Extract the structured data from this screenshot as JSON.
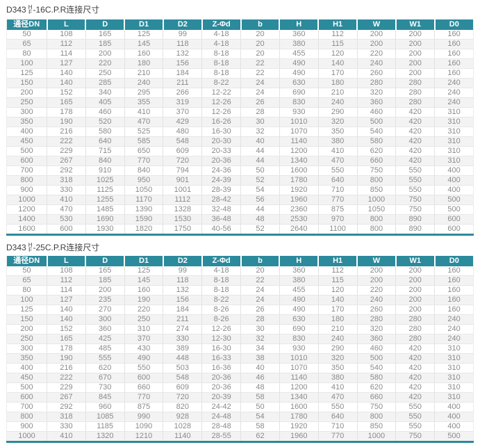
{
  "page": {
    "accent_color": "#2b8a9b",
    "row_stripe_color": "#f3f3f3",
    "text_color": "#8a8a8a"
  },
  "tables": [
    {
      "title_prefix": "D343",
      "title_frac_top": "H",
      "title_frac_bottom": "F",
      "title_suffix": "-16C.P.R连接尺寸",
      "columns": [
        "通径DN",
        "L",
        "D",
        "D1",
        "D2",
        "Z-Φd",
        "b",
        "H",
        "H1",
        "W",
        "W1",
        "D0"
      ],
      "rows": [
        [
          "50",
          "108",
          "165",
          "125",
          "99",
          "4-18",
          "20",
          "360",
          "112",
          "200",
          "200",
          "160"
        ],
        [
          "65",
          "112",
          "185",
          "145",
          "118",
          "4-18",
          "20",
          "380",
          "115",
          "200",
          "200",
          "160"
        ],
        [
          "80",
          "114",
          "200",
          "160",
          "132",
          "8-18",
          "20",
          "455",
          "120",
          "220",
          "200",
          "160"
        ],
        [
          "100",
          "127",
          "220",
          "180",
          "156",
          "8-18",
          "22",
          "490",
          "140",
          "240",
          "200",
          "160"
        ],
        [
          "125",
          "140",
          "250",
          "210",
          "184",
          "8-18",
          "22",
          "490",
          "170",
          "260",
          "200",
          "160"
        ],
        [
          "150",
          "140",
          "285",
          "240",
          "211",
          "8-22",
          "24",
          "630",
          "180",
          "280",
          "280",
          "240"
        ],
        [
          "200",
          "152",
          "340",
          "295",
          "266",
          "12-22",
          "24",
          "690",
          "210",
          "320",
          "280",
          "240"
        ],
        [
          "250",
          "165",
          "405",
          "355",
          "319",
          "12-26",
          "26",
          "830",
          "240",
          "360",
          "280",
          "240"
        ],
        [
          "300",
          "178",
          "460",
          "410",
          "370",
          "12-26",
          "28",
          "930",
          "290",
          "460",
          "420",
          "310"
        ],
        [
          "350",
          "190",
          "520",
          "470",
          "429",
          "16-26",
          "30",
          "1010",
          "320",
          "500",
          "420",
          "310"
        ],
        [
          "400",
          "216",
          "580",
          "525",
          "480",
          "16-30",
          "32",
          "1070",
          "350",
          "540",
          "420",
          "310"
        ],
        [
          "450",
          "222",
          "640",
          "585",
          "548",
          "20-30",
          "40",
          "1140",
          "380",
          "580",
          "420",
          "310"
        ],
        [
          "500",
          "229",
          "715",
          "650",
          "609",
          "20-33",
          "44",
          "1200",
          "410",
          "620",
          "420",
          "310"
        ],
        [
          "600",
          "267",
          "840",
          "770",
          "720",
          "20-36",
          "44",
          "1340",
          "470",
          "660",
          "420",
          "310"
        ],
        [
          "700",
          "292",
          "910",
          "840",
          "794",
          "24-36",
          "50",
          "1600",
          "550",
          "750",
          "550",
          "400"
        ],
        [
          "800",
          "318",
          "1025",
          "950",
          "901",
          "24-39",
          "52",
          "1780",
          "640",
          "800",
          "550",
          "400"
        ],
        [
          "900",
          "330",
          "1125",
          "1050",
          "1001",
          "28-39",
          "54",
          "1920",
          "710",
          "850",
          "550",
          "400"
        ],
        [
          "1000",
          "410",
          "1255",
          "1170",
          "1112",
          "28-42",
          "56",
          "1960",
          "770",
          "1000",
          "750",
          "500"
        ],
        [
          "1200",
          "470",
          "1485",
          "1390",
          "1328",
          "32-48",
          "44",
          "2360",
          "875",
          "1050",
          "750",
          "500"
        ],
        [
          "1400",
          "530",
          "1690",
          "1590",
          "1530",
          "36-48",
          "48",
          "2530",
          "970",
          "800",
          "890",
          "600"
        ],
        [
          "1600",
          "600",
          "1930",
          "1820",
          "1750",
          "40-56",
          "52",
          "2640",
          "1100",
          "800",
          "890",
          "600"
        ]
      ]
    },
    {
      "title_prefix": "D343",
      "title_frac_top": "H",
      "title_frac_bottom": "F",
      "title_suffix": "-25C.P.R连接尺寸",
      "columns": [
        "通径DN",
        "L",
        "D",
        "D1",
        "D2",
        "Z-Φd",
        "b",
        "H",
        "H1",
        "W",
        "W1",
        "D0"
      ],
      "rows": [
        [
          "50",
          "108",
          "165",
          "125",
          "99",
          "4-18",
          "20",
          "360",
          "112",
          "200",
          "200",
          "160"
        ],
        [
          "65",
          "112",
          "185",
          "145",
          "118",
          "8-18",
          "22",
          "380",
          "115",
          "200",
          "200",
          "160"
        ],
        [
          "80",
          "114",
          "200",
          "160",
          "132",
          "8-18",
          "24",
          "455",
          "120",
          "220",
          "200",
          "160"
        ],
        [
          "100",
          "127",
          "235",
          "190",
          "156",
          "8-22",
          "24",
          "490",
          "140",
          "240",
          "200",
          "160"
        ],
        [
          "125",
          "140",
          "270",
          "220",
          "184",
          "8-26",
          "26",
          "490",
          "170",
          "260",
          "200",
          "160"
        ],
        [
          "150",
          "140",
          "300",
          "250",
          "211",
          "8-26",
          "28",
          "630",
          "180",
          "280",
          "280",
          "240"
        ],
        [
          "200",
          "152",
          "360",
          "310",
          "274",
          "12-26",
          "30",
          "690",
          "210",
          "320",
          "280",
          "240"
        ],
        [
          "250",
          "165",
          "425",
          "370",
          "330",
          "12-30",
          "32",
          "830",
          "240",
          "360",
          "280",
          "240"
        ],
        [
          "300",
          "178",
          "485",
          "430",
          "389",
          "16-30",
          "34",
          "930",
          "290",
          "460",
          "420",
          "310"
        ],
        [
          "350",
          "190",
          "555",
          "490",
          "448",
          "16-33",
          "38",
          "1010",
          "320",
          "500",
          "420",
          "310"
        ],
        [
          "400",
          "216",
          "620",
          "550",
          "503",
          "16-36",
          "40",
          "1070",
          "350",
          "540",
          "420",
          "310"
        ],
        [
          "450",
          "222",
          "670",
          "600",
          "548",
          "20-36",
          "46",
          "1140",
          "380",
          "580",
          "420",
          "310"
        ],
        [
          "500",
          "229",
          "730",
          "660",
          "609",
          "20-36",
          "48",
          "1200",
          "410",
          "620",
          "420",
          "310"
        ],
        [
          "600",
          "267",
          "845",
          "770",
          "720",
          "20-39",
          "58",
          "1340",
          "470",
          "660",
          "420",
          "310"
        ],
        [
          "700",
          "292",
          "960",
          "875",
          "820",
          "24-42",
          "50",
          "1600",
          "550",
          "750",
          "550",
          "400"
        ],
        [
          "800",
          "318",
          "1085",
          "990",
          "928",
          "24-48",
          "54",
          "1780",
          "640",
          "800",
          "550",
          "400"
        ],
        [
          "900",
          "330",
          "1185",
          "1090",
          "1028",
          "28-48",
          "58",
          "1920",
          "710",
          "850",
          "550",
          "400"
        ],
        [
          "1000",
          "410",
          "1320",
          "1210",
          "1140",
          "28-55",
          "62",
          "1960",
          "770",
          "1000",
          "750",
          "500"
        ]
      ]
    }
  ]
}
